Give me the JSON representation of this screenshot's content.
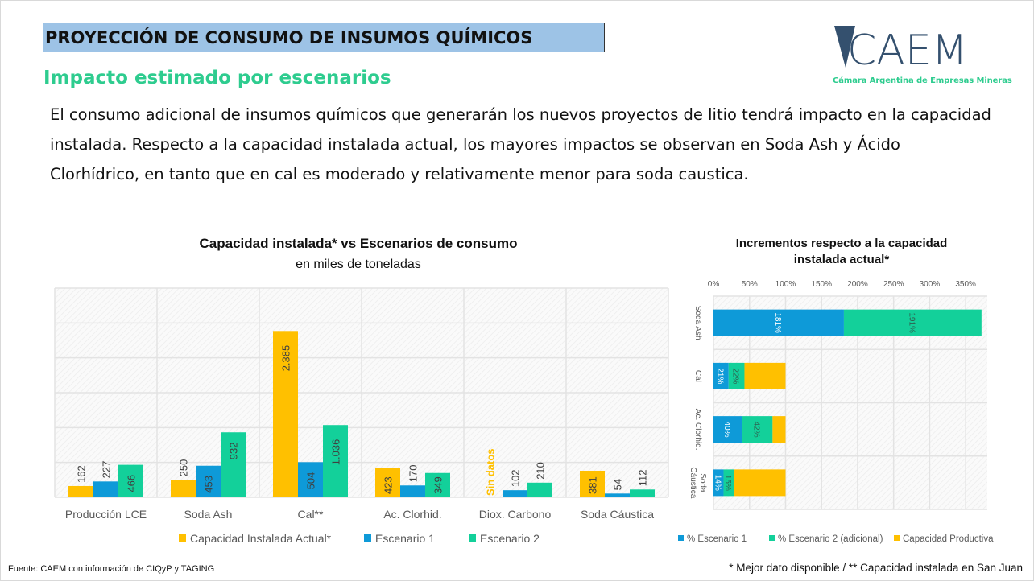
{
  "header": {
    "title": "PROYECCIÓN DE CONSUMO DE INSUMOS QUÍMICOS",
    "subtitle": "Impacto estimado por escenarios",
    "body": "El consumo adicional de insumos químicos que generarán los nuevos proyectos de litio tendrá impacto en la capacidad instalada. Respecto a la capacidad instalada actual, los mayores impactos se observan en Soda Ash y Ácido Clorhídrico, en tanto que en cal es moderado y relativamente menor para soda caustica."
  },
  "logo": {
    "text": "CAEM",
    "subtitle": "Cámara Argentina de Empresas Mineras"
  },
  "colors": {
    "capacidad": "#ffc000",
    "esc1": "#0e9ad8",
    "esc2": "#13d09a",
    "accent": "#2ecc8f"
  },
  "chart_data": [
    {
      "type": "bar",
      "title": "Capacidad instalada* vs Escenarios de consumo",
      "subtitle": "en miles de toneladas",
      "categories": [
        "Producción LCE",
        "Soda Ash",
        "Cal**",
        "Ac. Clorhid.",
        "Diox. Carbono",
        "Soda Cáustica"
      ],
      "series": [
        {
          "name": "Capacidad Instalada Actual*",
          "values": [
            162,
            250,
            2385,
            423,
            null,
            381
          ],
          "labels": [
            "162",
            "250",
            "2.385",
            "423",
            "Sin datos",
            "381"
          ]
        },
        {
          "name": "Escenario 1",
          "values": [
            227,
            453,
            504,
            170,
            102,
            54
          ],
          "labels": [
            "227",
            "453",
            "504",
            "170",
            "102",
            "54"
          ]
        },
        {
          "name": "Escenario 2",
          "values": [
            466,
            932,
            1036,
            349,
            210,
            112
          ],
          "labels": [
            "466",
            "932",
            "1.036",
            "349",
            "210",
            "112"
          ]
        }
      ],
      "ylim": [
        0,
        3000
      ],
      "grid": true,
      "legend": "bottom"
    },
    {
      "type": "bar",
      "orientation": "horizontal-stacked",
      "title": "Incrementos respecto a la capacidad instalada actual*",
      "categories": [
        "Soda Ash",
        "Cal",
        "Ac. Clorhid.",
        "Soda Caustica"
      ],
      "series": [
        {
          "name": "% Escenario 1",
          "values": [
            181,
            21,
            40,
            14
          ]
        },
        {
          "name": "% Escenario 2 (adicional)",
          "values": [
            191,
            22,
            42,
            15
          ]
        },
        {
          "name": "Capacidad Productiva",
          "values": [
            0,
            57,
            18,
            71
          ]
        }
      ],
      "xticks": [
        "0%",
        "50%",
        "100%",
        "150%",
        "200%",
        "250%",
        "300%",
        "350%"
      ],
      "xlim": [
        0,
        380
      ],
      "grid": true,
      "legend": "bottom"
    }
  ],
  "footer": {
    "source": "Fuente: CAEM con información de CIQyP y TAGING",
    "note": "* Mejor dato disponible  /  ** Capacidad instalada en San Juan"
  }
}
